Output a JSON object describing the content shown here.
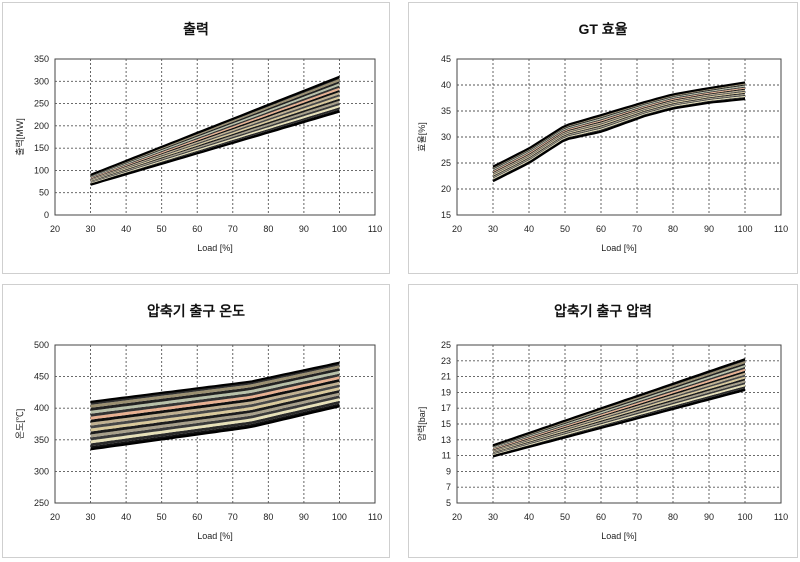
{
  "chart_data": [
    {
      "type": "line",
      "title": "출력",
      "xlabel": "Load [%]",
      "ylabel": "출력[MW]",
      "xlim": [
        20,
        110
      ],
      "ylim": [
        0,
        350
      ],
      "xticks": [
        20,
        30,
        40,
        50,
        60,
        70,
        80,
        90,
        100,
        110
      ],
      "yticks": [
        0,
        50,
        100,
        150,
        200,
        250,
        300,
        350
      ],
      "grid": true,
      "band": {
        "x": [
          30,
          100
        ],
        "upper": [
          90,
          310
        ],
        "lower": [
          68,
          232
        ]
      }
    },
    {
      "type": "line",
      "title": "GT 효율",
      "xlabel": "Load [%]",
      "ylabel": "효율[%]",
      "xlim": [
        20,
        110
      ],
      "ylim": [
        15,
        45
      ],
      "xticks": [
        20,
        30,
        40,
        50,
        60,
        70,
        80,
        90,
        100,
        110
      ],
      "yticks": [
        15,
        20,
        25,
        30,
        35,
        40,
        45
      ],
      "grid": true,
      "band": {
        "x": [
          30,
          40,
          50,
          60,
          72,
          80,
          90,
          100
        ],
        "upper": [
          24.3,
          27.8,
          32.2,
          34.2,
          36.7,
          38.2,
          39.4,
          40.5
        ],
        "lower": [
          21.5,
          25.0,
          29.5,
          31.0,
          34.0,
          35.5,
          36.6,
          37.3
        ]
      }
    },
    {
      "type": "line",
      "title": "압축기 출구 온도",
      "xlabel": "Load [%]",
      "ylabel": "온도[℃]",
      "xlim": [
        20,
        110
      ],
      "ylim": [
        250,
        500
      ],
      "xticks": [
        20,
        30,
        40,
        50,
        60,
        70,
        80,
        90,
        100,
        110
      ],
      "yticks": [
        250,
        300,
        350,
        400,
        450,
        500
      ],
      "grid": true,
      "band": {
        "x": [
          30,
          75,
          100
        ],
        "upper": [
          410,
          442,
          472
        ],
        "lower": [
          335,
          370,
          403
        ]
      }
    },
    {
      "type": "line",
      "title": "압축기 출구 압력",
      "xlabel": "Load [%]",
      "ylabel": "압력[bar]",
      "xlim": [
        20,
        110
      ],
      "ylim": [
        5,
        25
      ],
      "xticks": [
        20,
        30,
        40,
        50,
        60,
        70,
        80,
        90,
        100,
        110
      ],
      "yticks": [
        5,
        7,
        9,
        11,
        13,
        15,
        17,
        19,
        21,
        23,
        25
      ],
      "grid": true,
      "band": {
        "x": [
          30,
          100
        ],
        "upper": [
          12.3,
          23.2
        ],
        "lower": [
          10.9,
          19.3
        ]
      }
    }
  ]
}
